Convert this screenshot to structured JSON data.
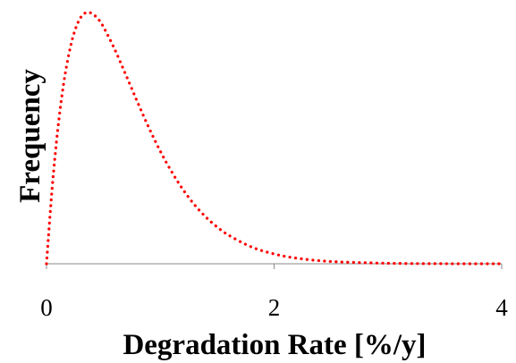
{
  "chart_data": {
    "type": "line",
    "title": "",
    "xlabel": "Degradation Rate [%/y]",
    "ylabel": "Frequency",
    "xlim": [
      0,
      4
    ],
    "ylim": [
      0,
      1
    ],
    "x_ticks": [
      "0",
      "2",
      "4"
    ],
    "x_tick_values": [
      0,
      2,
      4
    ],
    "y_ticks": [],
    "grid": false,
    "legend": "none",
    "series": [
      {
        "color": "#ff0000",
        "line_style": "dotted",
        "x": [
          0.0,
          0.05,
          0.1,
          0.15,
          0.2,
          0.25,
          0.3,
          0.35,
          0.4,
          0.45,
          0.5,
          0.6,
          0.7,
          0.8,
          0.9,
          1.0,
          1.1,
          1.2,
          1.3,
          1.4,
          1.5,
          1.6,
          1.8,
          2.0,
          2.2,
          2.5,
          3.0,
          3.5,
          4.0
        ],
        "y": [
          0.0,
          0.303,
          0.538,
          0.715,
          0.842,
          0.929,
          0.98,
          1.0,
          0.996,
          0.976,
          0.943,
          0.853,
          0.749,
          0.643,
          0.541,
          0.448,
          0.366,
          0.295,
          0.235,
          0.186,
          0.146,
          0.114,
          0.067,
          0.039,
          0.022,
          0.009,
          0.002,
          0.0003,
          0.0
        ]
      }
    ]
  }
}
